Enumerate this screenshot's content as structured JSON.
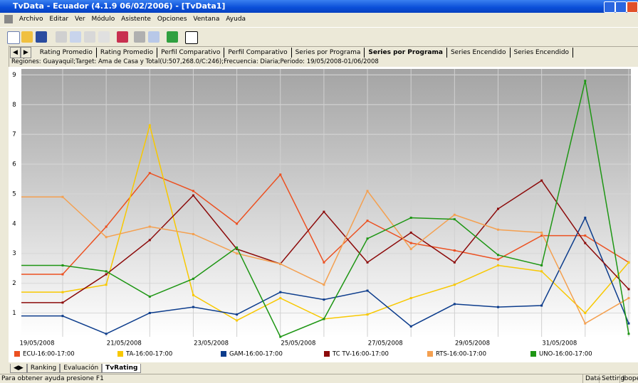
{
  "window": {
    "title": "TvData - Ecuador (4.1.9 06/02/2006) - [TvData1]",
    "menu": [
      "Archivo",
      "Editar",
      "Ver",
      "Módulo",
      "Asistente",
      "Opciones",
      "Ventana",
      "Ayuda"
    ],
    "tabs": [
      "Rating Promedio",
      "Rating Promedio",
      "Perfil Comparativo",
      "Perfil Comparativo",
      "Series por Programa",
      "Series por Programa",
      "Series Encendido",
      "Series Encendido"
    ],
    "info": "Regiones: Guayaquil;Target: Ama de Casa y Total(U:507,268.0/C:246);Frecuencia: Diaria;Periodo: 19/05/2008-01/06/2008",
    "bottom_tabs": [
      "Ranking",
      "Evaluación",
      "TvRating"
    ],
    "status": "Para obtener ayuda presione F1",
    "status_panels": [
      "Data",
      "Setting",
      "Ibope"
    ]
  },
  "chart_data": {
    "type": "line",
    "categories": [
      "19/05/2008",
      null,
      "21/05/2008",
      null,
      "23/05/2008",
      null,
      "25/05/2008",
      null,
      "27/05/2008",
      null,
      "29/05/2008",
      null,
      "31/05/2008",
      null
    ],
    "ylim": [
      0.2,
      9.2
    ],
    "yticks": [
      1,
      2,
      3,
      4,
      5,
      6,
      7,
      8,
      9
    ],
    "grid": true,
    "legend": "bottom",
    "series": [
      {
        "name": "ECU-16:00-17:00",
        "color": "#ec5020",
        "values": [
          2.3,
          3.9,
          5.7,
          5.1,
          4.0,
          5.65,
          2.7,
          4.1,
          3.35,
          3.1,
          2.8,
          3.6,
          3.6,
          2.7
        ]
      },
      {
        "name": "TA-16:00-17:00",
        "color": "#f8c800",
        "values": [
          1.7,
          1.95,
          7.3,
          1.6,
          0.75,
          1.5,
          0.8,
          0.95,
          1.5,
          1.95,
          2.6,
          2.4,
          1.0,
          2.7
        ]
      },
      {
        "name": "GAM-16:00-17:00",
        "color": "#0c3c8c",
        "values": [
          0.9,
          0.3,
          1.0,
          1.2,
          0.95,
          1.7,
          1.45,
          1.75,
          0.55,
          1.3,
          1.2,
          1.25,
          4.2,
          0.65
        ]
      },
      {
        "name": "TC TV-16:00-17:00",
        "color": "#8c0a0a",
        "values": [
          1.35,
          2.3,
          3.45,
          4.95,
          3.15,
          2.65,
          4.4,
          2.7,
          3.7,
          2.7,
          4.5,
          5.45,
          3.35,
          1.8
        ]
      },
      {
        "name": "RTS-16:00-17:00",
        "color": "#f4a050",
        "values": [
          4.9,
          3.55,
          3.9,
          3.65,
          3.0,
          2.65,
          1.95,
          5.1,
          3.15,
          4.3,
          3.8,
          3.7,
          0.65,
          1.5
        ]
      },
      {
        "name": "UNO-16:00-17:00",
        "color": "#1e9614",
        "values": [
          2.6,
          2.4,
          1.55,
          2.15,
          3.2,
          0.2,
          0.8,
          3.5,
          4.2,
          4.15,
          2.95,
          2.6,
          8.8,
          0.3
        ]
      }
    ]
  }
}
